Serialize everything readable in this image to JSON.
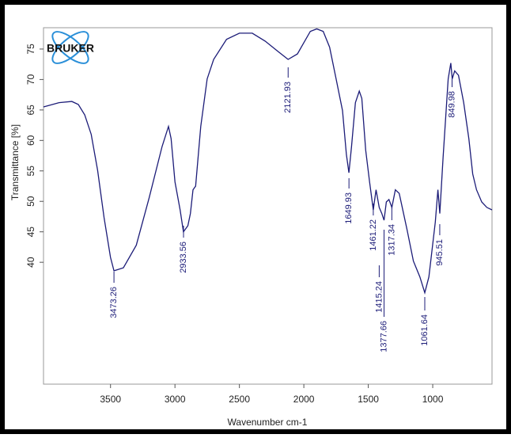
{
  "chart_data": {
    "type": "line",
    "logo_text": "BRUKER",
    "x_label": "Wavenumber cm-1",
    "y_label": "Transmittance [%]",
    "xlim": [
      4020,
      540
    ],
    "xticks": [
      3500,
      3000,
      2500,
      2000,
      1500,
      1000
    ],
    "ylim": [
      20,
      78.5
    ],
    "yticks": [
      40,
      45,
      50,
      55,
      60,
      65,
      70,
      75
    ],
    "x": [
      4020,
      3900,
      3800,
      3750,
      3700,
      3650,
      3600,
      3550,
      3500,
      3473,
      3400,
      3300,
      3200,
      3100,
      3050,
      3030,
      3000,
      2960,
      2934,
      2900,
      2880,
      2860,
      2840,
      2800,
      2750,
      2700,
      2600,
      2500,
      2400,
      2300,
      2200,
      2122,
      2050,
      1950,
      1900,
      1850,
      1800,
      1750,
      1700,
      1670,
      1650,
      1630,
      1600,
      1570,
      1550,
      1520,
      1490,
      1461,
      1440,
      1415,
      1395,
      1378,
      1360,
      1340,
      1317,
      1290,
      1260,
      1200,
      1150,
      1100,
      1062,
      1030,
      980,
      960,
      945,
      920,
      880,
      860,
      849,
      830,
      800,
      760,
      720,
      690,
      660,
      620,
      580,
      540
    ],
    "series": [
      {
        "color": "#1c1c78",
        "values": [
          65.5,
          66.2,
          66.4,
          65.9,
          64.2,
          61.0,
          55.1,
          47.3,
          40.8,
          38.6,
          39.1,
          42.8,
          50.6,
          59.0,
          62.3,
          60.3,
          53.2,
          48.6,
          45.0,
          46.0,
          48.0,
          51.9,
          52.5,
          62.3,
          70.1,
          73.3,
          76.6,
          77.6,
          77.6,
          76.3,
          74.6,
          73.3,
          74.2,
          77.9,
          78.3,
          77.9,
          75.3,
          70.1,
          64.9,
          57.7,
          54.7,
          59.0,
          66.2,
          68.1,
          66.9,
          58.4,
          53.2,
          48.6,
          51.9,
          49.0,
          48.0,
          46.9,
          49.9,
          50.3,
          49.0,
          51.9,
          51.3,
          45.4,
          40.2,
          37.6,
          35.0,
          37.6,
          46.6,
          51.9,
          48.0,
          57.1,
          70.1,
          72.7,
          70.1,
          71.4,
          70.7,
          66.2,
          60.3,
          54.5,
          51.9,
          49.9,
          49.0,
          48.6
        ]
      }
    ],
    "peaks": [
      3473.26,
      2933.56,
      2121.93,
      1649.93,
      1461.22,
      1415.24,
      1377.66,
      1317.34,
      1061.64,
      945.51,
      849.98
    ]
  }
}
